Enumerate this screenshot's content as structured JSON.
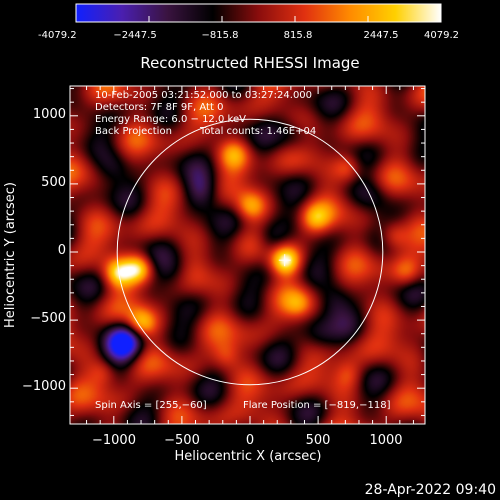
{
  "colorbar": {
    "ticks": [
      "-4079.2",
      "−2447.5",
      "−815.8",
      "815.8",
      "2447.5",
      "4079.2"
    ],
    "min": -4079.2,
    "max": 4079.2,
    "colors": [
      "#1020ff",
      "#4a1fb0",
      "#3a1340",
      "#000000",
      "#8a0d0d",
      "#e03010",
      "#ff8a00",
      "#ffd000",
      "#ffffff"
    ]
  },
  "footer": {
    "timestamp": "28-Apr-2022 09:40"
  },
  "chart_data": {
    "type": "heatmap",
    "title": "Reconstructed RHESSI Image",
    "xlabel": "Heliocentric X (arcsec)",
    "ylabel": "Heliocentric Y (arcsec)",
    "xlim": [
      -1290,
      1290
    ],
    "ylim": [
      -1290,
      1290
    ],
    "x_ticks": [
      "−1000",
      "−500",
      "0",
      "500",
      "1000"
    ],
    "x_tick_values": [
      -1000,
      -500,
      0,
      500,
      1000
    ],
    "y_ticks": [
      "1000",
      "500",
      "0",
      "−500",
      "−1000"
    ],
    "y_tick_values": [
      1000,
      500,
      0,
      -500,
      -1000
    ],
    "annotations": {
      "line1": "10-Feb-2005 03:21:52.000 to 03:27:24.000",
      "line2": "Detectors: 7F 8F 9F, Att 0",
      "line3": "Energy Range: 6.0 − 12.0 keV",
      "line4_method": "Back Projection",
      "line4_counts": "Total counts: 1.46E+04",
      "spin_axis": "Spin Axis = [255,−60]",
      "flare_position": "Flare Position = [−819,−118]"
    },
    "solar_limb": {
      "center": [
        0,
        0
      ],
      "radius": 975
    },
    "marker": {
      "x": 255,
      "y": -60
    },
    "hot_spots": [
      {
        "x": 255,
        "y": -60,
        "value": 4079
      },
      {
        "x": -820,
        "y": -118,
        "value": 3400
      },
      {
        "x": -970,
        "y": -150,
        "value": 3000
      },
      {
        "x": -800,
        "y": -520,
        "value": 2600
      },
      {
        "x": 0,
        "y": 340,
        "value": 2200
      },
      {
        "x": 480,
        "y": 250,
        "value": 2000
      },
      {
        "x": -120,
        "y": 720,
        "value": 1800
      },
      {
        "x": 720,
        "y": 620,
        "value": 1700
      },
      {
        "x": 1050,
        "y": 120,
        "value": 1900
      },
      {
        "x": 350,
        "y": -380,
        "value": 1600
      },
      {
        "x": -1080,
        "y": -880,
        "value": 1500
      },
      {
        "x": 1150,
        "y": -150,
        "value": 1400
      },
      {
        "x": -180,
        "y": -760,
        "value": 1400
      },
      {
        "x": 720,
        "y": -900,
        "value": 1300
      }
    ],
    "cold_spots": [
      {
        "x": -930,
        "y": -670,
        "value": -4079
      },
      {
        "x": -350,
        "y": 450,
        "value": -2200
      },
      {
        "x": 150,
        "y": 100,
        "value": -1900
      },
      {
        "x": 620,
        "y": -350,
        "value": -1700
      },
      {
        "x": -550,
        "y": -150,
        "value": -1600
      },
      {
        "x": 500,
        "y": -620,
        "value": -1600
      },
      {
        "x": 330,
        "y": 850,
        "value": -1400
      },
      {
        "x": -1000,
        "y": 620,
        "value": -1500
      },
      {
        "x": 900,
        "y": 420,
        "value": -1300
      }
    ]
  }
}
